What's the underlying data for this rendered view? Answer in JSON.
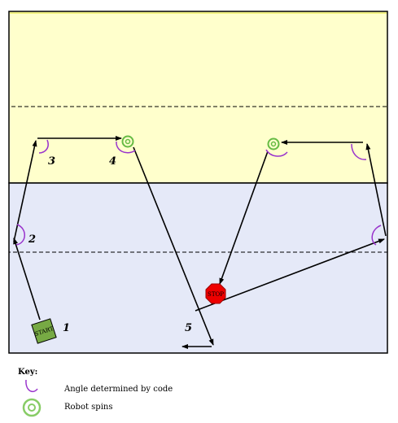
{
  "segment_numbers": [
    "1",
    "2",
    "3",
    "4",
    "5"
  ],
  "start_label": "START",
  "stop_label": "STOP",
  "key": {
    "title": "Key:",
    "angle_label": "Angle determined by code",
    "spin_label": "Robot spins",
    "angle_icon": "purple-arc-icon",
    "spin_icon": "green-target-icon"
  },
  "colors": {
    "top_zone": "#ffffcc",
    "bottom_zone": "#e5e9f8",
    "angle_arc": "#9933cc",
    "spin_target": "#66bb44",
    "start_fill": "#77aa44",
    "stop_fill": "#ee0000",
    "path": "#000000"
  }
}
